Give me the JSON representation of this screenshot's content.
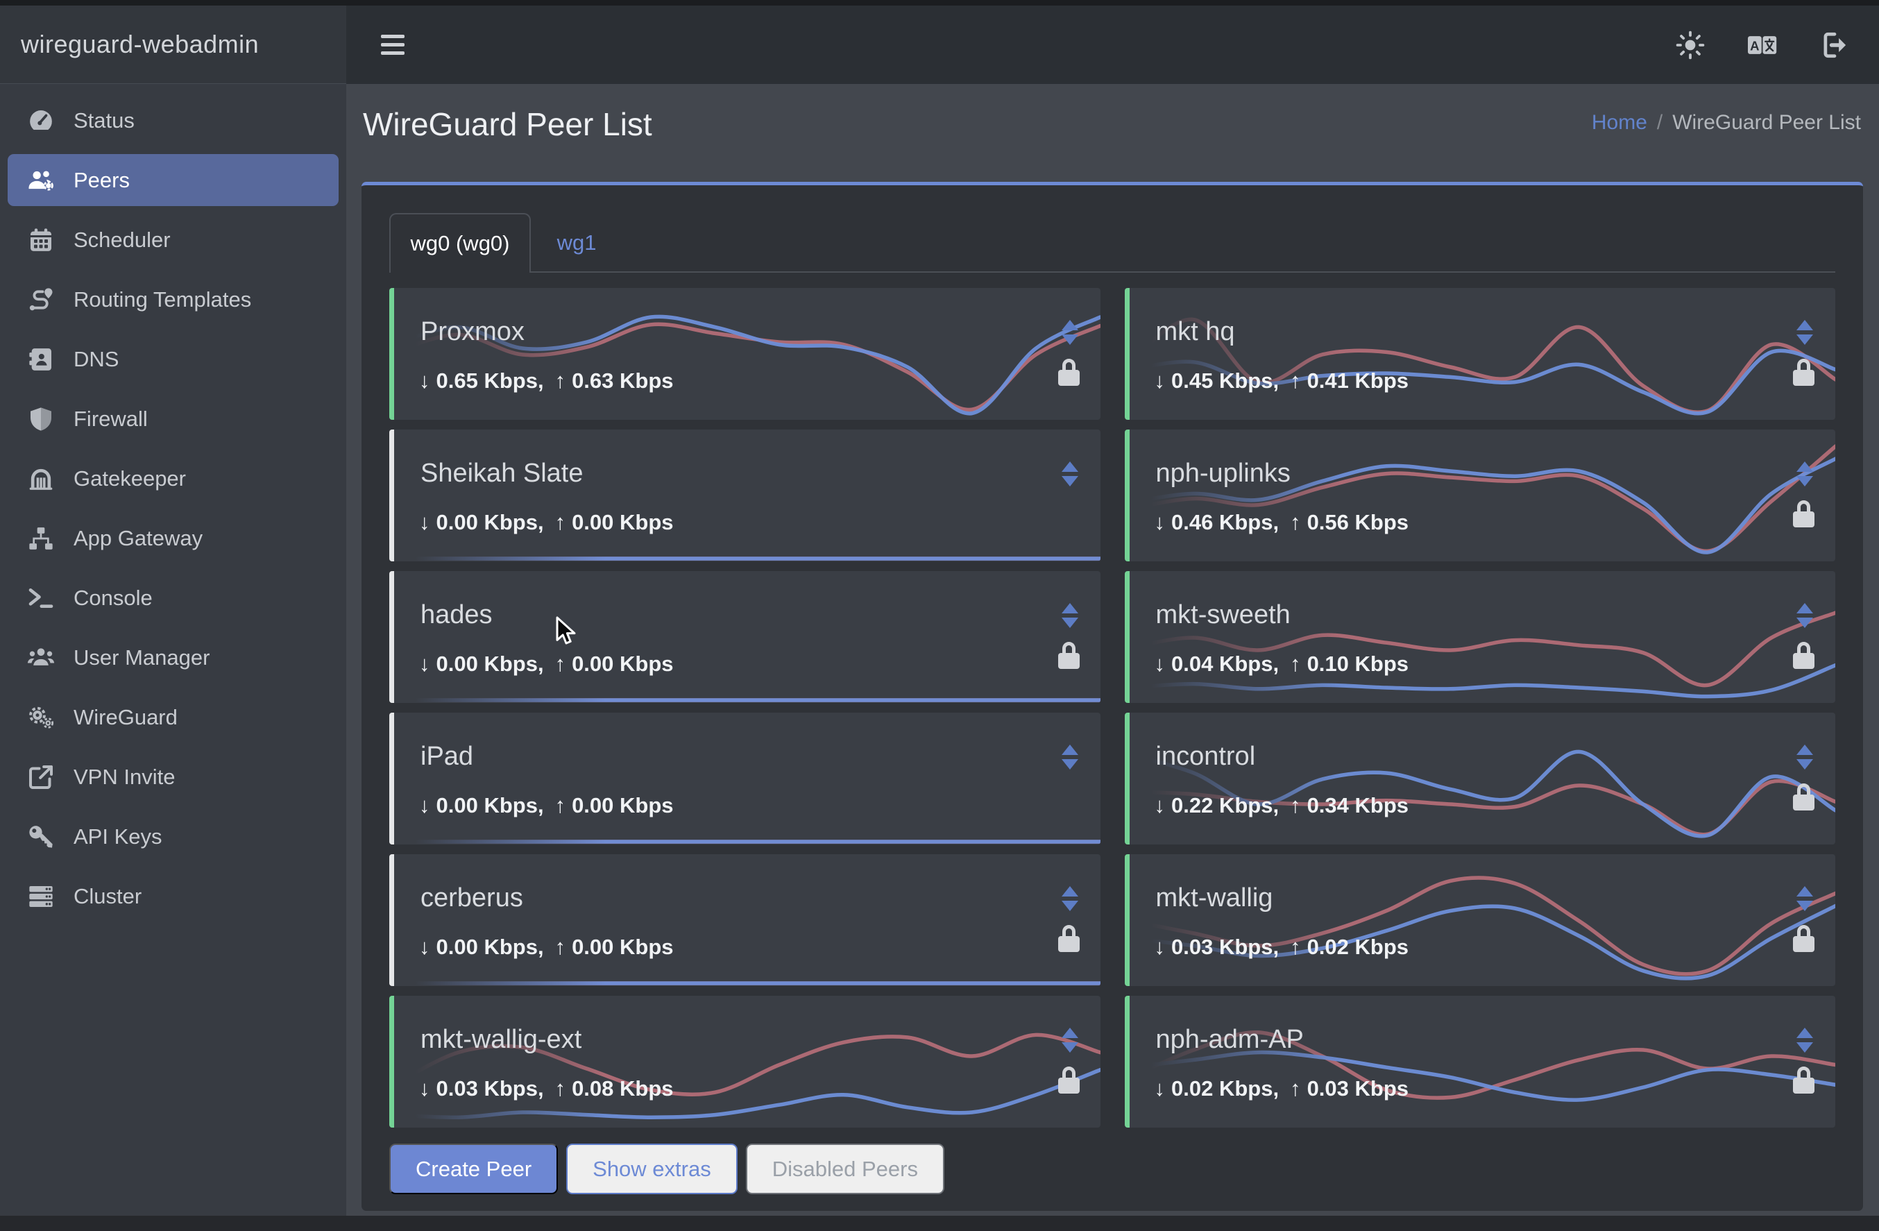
{
  "app": {
    "title": "wireguard-webadmin"
  },
  "topbar": {
    "icons": [
      "theme-sun-icon",
      "language-icon",
      "logout-icon"
    ],
    "menu_icon": "hamburger-icon"
  },
  "sidebar": {
    "items": [
      {
        "label": "Status",
        "icon": "gauge-icon",
        "active": false
      },
      {
        "label": "Peers",
        "icon": "users-gear-icon",
        "active": true
      },
      {
        "label": "Scheduler",
        "icon": "calendar-icon",
        "active": false
      },
      {
        "label": "Routing Templates",
        "icon": "route-icon",
        "active": false
      },
      {
        "label": "DNS",
        "icon": "address-book-icon",
        "active": false
      },
      {
        "label": "Firewall",
        "icon": "shield-icon",
        "active": false
      },
      {
        "label": "Gatekeeper",
        "icon": "archway-icon",
        "active": false
      },
      {
        "label": "App Gateway",
        "icon": "sitemap-icon",
        "active": false
      },
      {
        "label": "Console",
        "icon": "terminal-icon",
        "active": false
      },
      {
        "label": "User Manager",
        "icon": "users-icon",
        "active": false
      },
      {
        "label": "WireGuard",
        "icon": "gears-icon",
        "active": false
      },
      {
        "label": "VPN Invite",
        "icon": "share-icon",
        "active": false
      },
      {
        "label": "API Keys",
        "icon": "key-icon",
        "active": false
      },
      {
        "label": "Cluster",
        "icon": "server-stack-icon",
        "active": false
      }
    ]
  },
  "page": {
    "title": "WireGuard Peer List",
    "breadcrumb": {
      "home": "Home",
      "separator": "/",
      "current": "WireGuard Peer List"
    }
  },
  "tabs": [
    {
      "label": "wg0 (wg0)",
      "active": true
    },
    {
      "label": "wg1",
      "active": false
    }
  ],
  "glyphs": {
    "down": "↓",
    "up": "↑"
  },
  "peers": [
    {
      "name": "Proxmox",
      "down": "0.65 Kbps,",
      "up": "0.63 Kbps",
      "online": true,
      "locked": true,
      "spark": {
        "rx": [
          0.58,
          0.72,
          0.55,
          0.6,
          0.8,
          0.72,
          0.58,
          0.56,
          0.4,
          0.03,
          0.55,
          0.8
        ],
        "tx": [
          0.52,
          0.66,
          0.5,
          0.56,
          0.74,
          0.67,
          0.6,
          0.58,
          0.36,
          0.06,
          0.5,
          0.73
        ]
      }
    },
    {
      "name": "mkt hq",
      "down": "0.45 Kbps,",
      "up": "0.41 Kbps",
      "online": true,
      "locked": true,
      "spark": {
        "rx": [
          0.38,
          0.44,
          0.27,
          0.33,
          0.35,
          0.32,
          0.28,
          0.42,
          0.2,
          0.04,
          0.52,
          0.38
        ],
        "tx": [
          0.45,
          0.78,
          0.28,
          0.5,
          0.52,
          0.4,
          0.32,
          0.72,
          0.25,
          0.05,
          0.58,
          0.3
        ]
      }
    },
    {
      "name": "Sheikah Slate",
      "down": "0.00 Kbps,",
      "up": "0.00 Kbps",
      "online": false,
      "locked": false,
      "spark": {
        "rx": [
          0,
          0,
          0,
          0,
          0,
          0,
          0,
          0,
          0,
          0,
          0,
          0
        ],
        "tx": [
          0,
          0,
          0,
          0,
          0,
          0,
          0,
          0,
          0,
          0,
          0,
          0
        ]
      }
    },
    {
      "name": "nph-uplinks",
      "down": "0.46 Kbps,",
      "up": "0.56 Kbps",
      "online": true,
      "locked": true,
      "spark": {
        "rx": [
          0.45,
          0.52,
          0.47,
          0.62,
          0.74,
          0.7,
          0.66,
          0.7,
          0.45,
          0.05,
          0.52,
          0.8
        ],
        "tx": [
          0.4,
          0.48,
          0.43,
          0.57,
          0.68,
          0.65,
          0.62,
          0.66,
          0.4,
          0.06,
          0.46,
          0.9
        ]
      }
    },
    {
      "name": "hades",
      "down": "0.00 Kbps,",
      "up": "0.00 Kbps",
      "online": false,
      "locked": true,
      "spark": {
        "rx": [
          0,
          0,
          0,
          0,
          0,
          0,
          0,
          0,
          0,
          0,
          0,
          0
        ],
        "tx": [
          0,
          0,
          0,
          0,
          0,
          0,
          0,
          0,
          0,
          0,
          0,
          0
        ]
      }
    },
    {
      "name": "mkt-sweeth",
      "down": "0.04 Kbps,",
      "up": "0.10 Kbps",
      "online": true,
      "locked": true,
      "spark": {
        "rx": [
          0.1,
          0.13,
          0.09,
          0.12,
          0.1,
          0.09,
          0.12,
          0.1,
          0.07,
          0.03,
          0.08,
          0.28
        ],
        "tx": [
          0.42,
          0.5,
          0.4,
          0.52,
          0.46,
          0.4,
          0.48,
          0.44,
          0.38,
          0.12,
          0.5,
          0.7
        ]
      }
    },
    {
      "name": "iPad",
      "down": "0.00 Kbps,",
      "up": "0.00 Kbps",
      "online": false,
      "locked": false,
      "spark": {
        "rx": [
          0,
          0,
          0,
          0,
          0,
          0,
          0,
          0,
          0,
          0,
          0,
          0
        ],
        "tx": [
          0,
          0,
          0,
          0,
          0,
          0,
          0,
          0,
          0,
          0,
          0,
          0
        ]
      }
    },
    {
      "name": "incontrol",
      "down": "0.22 Kbps,",
      "up": "0.34 Kbps",
      "online": true,
      "locked": true,
      "spark": {
        "rx": [
          0.7,
          0.55,
          0.3,
          0.5,
          0.55,
          0.42,
          0.35,
          0.72,
          0.3,
          0.05,
          0.52,
          0.25
        ],
        "tx": [
          0.4,
          0.38,
          0.32,
          0.3,
          0.33,
          0.3,
          0.28,
          0.45,
          0.3,
          0.06,
          0.48,
          0.32
        ]
      }
    },
    {
      "name": "cerberus",
      "down": "0.00 Kbps,",
      "up": "0.00 Kbps",
      "online": false,
      "locked": true,
      "spark": {
        "rx": [
          0,
          0,
          0,
          0,
          0,
          0,
          0,
          0,
          0,
          0,
          0,
          0
        ],
        "tx": [
          0,
          0,
          0,
          0,
          0,
          0,
          0,
          0,
          0,
          0,
          0,
          0
        ]
      }
    },
    {
      "name": "mkt-wallig",
      "down": "0.03 Kbps,",
      "up": "0.02 Kbps",
      "online": true,
      "locked": true,
      "spark": {
        "rx": [
          0.36,
          0.3,
          0.22,
          0.28,
          0.42,
          0.58,
          0.6,
          0.38,
          0.1,
          0.06,
          0.36,
          0.62
        ],
        "tx": [
          0.5,
          0.4,
          0.3,
          0.4,
          0.58,
          0.82,
          0.8,
          0.5,
          0.15,
          0.1,
          0.48,
          0.72
        ]
      }
    },
    {
      "name": "mkt-wallig-ext",
      "down": "0.03 Kbps,",
      "up": "0.08 Kbps",
      "online": true,
      "locked": true,
      "spark": {
        "rx": [
          0.08,
          0.06,
          0.1,
          0.08,
          0.06,
          0.08,
          0.16,
          0.24,
          0.14,
          0.1,
          0.24,
          0.44
        ],
        "tx": [
          0.32,
          0.58,
          0.62,
          0.45,
          0.28,
          0.26,
          0.48,
          0.66,
          0.7,
          0.55,
          0.72,
          0.58
        ]
      }
    },
    {
      "name": "nph-adm-AP",
      "down": "0.02 Kbps,",
      "up": "0.03 Kbps",
      "online": true,
      "locked": true,
      "spark": {
        "rx": [
          0.46,
          0.52,
          0.58,
          0.54,
          0.46,
          0.38,
          0.26,
          0.2,
          0.3,
          0.44,
          0.4,
          0.32
        ],
        "tx": [
          0.38,
          0.6,
          0.74,
          0.55,
          0.28,
          0.22,
          0.36,
          0.52,
          0.6,
          0.45,
          0.55,
          0.48
        ]
      }
    }
  ],
  "actions": {
    "create": "Create Peer",
    "extras": "Show extras",
    "disabled": "Disabled Peers"
  },
  "colors": {
    "accent_blue": "#6d8ad5",
    "active_nav": "#58699c",
    "online_green": "#74d395",
    "offline_gray": "#e6e7e9",
    "spark_rx": "#6e8fd9",
    "spark_tx": "#c9767f",
    "panel_bg": "#2f3237",
    "card_bg": "#3a3e45",
    "button_blue": "#6d87d3"
  }
}
